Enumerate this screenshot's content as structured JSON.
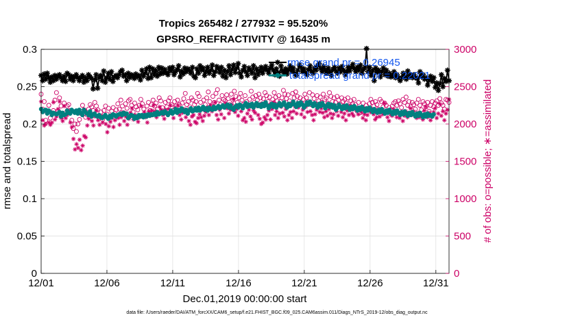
{
  "chart_data": {
    "type": "line",
    "title": "Tropics 265482 / 277932 = 95.520%",
    "subtitle": "GPSRO_REFRACTIVITY @ 16435 m",
    "xlabel": "Dec.01,2019 00:00:00 start",
    "ylabel": "rmse and totalspread",
    "ylabel_right": "# of obs: o=possible; ∗=assimilated",
    "xlim": [
      0,
      31
    ],
    "ylim": [
      0,
      0.3
    ],
    "ylim_right": [
      0,
      3000
    ],
    "x_ticks": [
      0,
      5,
      10,
      15,
      20,
      25,
      30
    ],
    "x_tick_labels": [
      "12/01",
      "12/06",
      "12/11",
      "12/16",
      "12/21",
      "12/26",
      "12/31"
    ],
    "y_tick_labels": [
      "0",
      "0.05",
      "0.1",
      "0.15",
      "0.2",
      "0.25",
      "0.3"
    ],
    "y_right_tick_labels": [
      "0",
      "500",
      "1000",
      "1500",
      "2000",
      "2500",
      "3000"
    ],
    "grid": true,
    "legend_position": "top-right",
    "colors": {
      "rmse": "#000000",
      "spread": "#008080",
      "obs": "#cc0066",
      "legend_text": "#1155ee"
    },
    "series": [
      {
        "name": "rmse grand pr = 0.26945",
        "axis": "left",
        "marker": "asterisk",
        "values": [
          0.265,
          0.258,
          0.267,
          0.26,
          0.268,
          0.262,
          0.256,
          0.263,
          0.258,
          0.265,
          0.26,
          0.264,
          0.266,
          0.262,
          0.258,
          0.264,
          0.257,
          0.268,
          0.266,
          0.26,
          0.264,
          0.258,
          0.263,
          0.266,
          0.262,
          0.258,
          0.262,
          0.265,
          0.256,
          0.262,
          0.258,
          0.266,
          0.263,
          0.261,
          0.247,
          0.259,
          0.266,
          0.248,
          0.262,
          0.265,
          0.258,
          0.271,
          0.256,
          0.262,
          0.268,
          0.26,
          0.27,
          0.257,
          0.263,
          0.265,
          0.262,
          0.266,
          0.27,
          0.272,
          0.264,
          0.266,
          0.258,
          0.268,
          0.262,
          0.266,
          0.265,
          0.261,
          0.267,
          0.263,
          0.265,
          0.259,
          0.272,
          0.264,
          0.268,
          0.274,
          0.261,
          0.276,
          0.262,
          0.274,
          0.266,
          0.272,
          0.264,
          0.276,
          0.267,
          0.275,
          0.268,
          0.273,
          0.269,
          0.266,
          0.275,
          0.271,
          0.276,
          0.266,
          0.27,
          0.273,
          0.278,
          0.263,
          0.271,
          0.267,
          0.275,
          0.27,
          0.274,
          0.272,
          0.268,
          0.276,
          0.264,
          0.262,
          0.274,
          0.268,
          0.278,
          0.272,
          0.275,
          0.265,
          0.271,
          0.276,
          0.268,
          0.272,
          0.279,
          0.265,
          0.27,
          0.277,
          0.274,
          0.269,
          0.276,
          0.264,
          0.272,
          0.262,
          0.27,
          0.278,
          0.266,
          0.273,
          0.279,
          0.269,
          0.275,
          0.281,
          0.268,
          0.263,
          0.272,
          0.277,
          0.27,
          0.265,
          0.275,
          0.272,
          0.268,
          0.278,
          0.262,
          0.274,
          0.266,
          0.271,
          0.276,
          0.268,
          0.273,
          0.277,
          0.272,
          0.268,
          0.275,
          0.279,
          0.272,
          0.266,
          0.274,
          0.269,
          0.264,
          0.278,
          0.271,
          0.268,
          0.274,
          0.267,
          0.273,
          0.278,
          0.271,
          0.275,
          0.268,
          0.265,
          0.272,
          0.279,
          0.276,
          0.27,
          0.274,
          0.269,
          0.266,
          0.273,
          0.278,
          0.271,
          0.268,
          0.275,
          0.272,
          0.278,
          0.281,
          0.274,
          0.27,
          0.277,
          0.272,
          0.268,
          0.275,
          0.27,
          0.265,
          0.273,
          0.276,
          0.271,
          0.268,
          0.275,
          0.27,
          0.277,
          0.272,
          0.266,
          0.27,
          0.276,
          0.271,
          0.276,
          0.28,
          0.274,
          0.27,
          0.276,
          0.272,
          0.279,
          0.268,
          0.273,
          0.276,
          0.301,
          0.27,
          0.276,
          0.265,
          0.272,
          0.258,
          0.275,
          0.269,
          0.272,
          0.263,
          0.27,
          0.275,
          0.266,
          0.272,
          0.264,
          0.268,
          0.263,
          0.265,
          0.27,
          0.262,
          0.266,
          0.262,
          0.258,
          0.262,
          0.268,
          0.264,
          0.26,
          0.271,
          0.263,
          0.266,
          0.262,
          0.266,
          0.262,
          0.261,
          0.255,
          0.27,
          0.263,
          0.266,
          0.26,
          0.262,
          0.252,
          0.259,
          0.264,
          0.257,
          0.262,
          0.249,
          0.255,
          0.245,
          0.254,
          0.266,
          0.25,
          0.261,
          0.257,
          0.272,
          0.258
        ]
      },
      {
        "name": "totalspread grand pr = 0.22021",
        "axis": "left",
        "marker": "filled-circle",
        "values": [
          0.22,
          0.216,
          0.218,
          0.219,
          0.214,
          0.218,
          0.216,
          0.212,
          0.215,
          0.214,
          0.213,
          0.214,
          0.216,
          0.21,
          0.215,
          0.212,
          0.213,
          0.218,
          0.215,
          0.214,
          0.219,
          0.217,
          0.215,
          0.218,
          0.214,
          0.219,
          0.215,
          0.212,
          0.219,
          0.216,
          0.214,
          0.212,
          0.217,
          0.21,
          0.213,
          0.214,
          0.211,
          0.21,
          0.212,
          0.209,
          0.208,
          0.21,
          0.212,
          0.209,
          0.207,
          0.211,
          0.209,
          0.213,
          0.212,
          0.21,
          0.212,
          0.213,
          0.214,
          0.212,
          0.215,
          0.213,
          0.214,
          0.208,
          0.21,
          0.212,
          0.211,
          0.207,
          0.21,
          0.208,
          0.212,
          0.21,
          0.212,
          0.209,
          0.212,
          0.21,
          0.213,
          0.211,
          0.213,
          0.212,
          0.214,
          0.212,
          0.216,
          0.213,
          0.214,
          0.216,
          0.214,
          0.217,
          0.215,
          0.212,
          0.215,
          0.218,
          0.214,
          0.216,
          0.22,
          0.215,
          0.219,
          0.217,
          0.221,
          0.218,
          0.216,
          0.219,
          0.214,
          0.218,
          0.221,
          0.217,
          0.218,
          0.221,
          0.218,
          0.222,
          0.218,
          0.22,
          0.223,
          0.219,
          0.221,
          0.218,
          0.222,
          0.22,
          0.219,
          0.223,
          0.22,
          0.222,
          0.224,
          0.221,
          0.223,
          0.225,
          0.222,
          0.224,
          0.226,
          0.222,
          0.225,
          0.221,
          0.219,
          0.223,
          0.225,
          0.222,
          0.226,
          0.224,
          0.221,
          0.225,
          0.228,
          0.223,
          0.226,
          0.224,
          0.227,
          0.222,
          0.225,
          0.228,
          0.224,
          0.226,
          0.223,
          0.227,
          0.224,
          0.229,
          0.225,
          0.221,
          0.224,
          0.227,
          0.223,
          0.226,
          0.222,
          0.225,
          0.228,
          0.224,
          0.226,
          0.229,
          0.225,
          0.222,
          0.227,
          0.224,
          0.226,
          0.23,
          0.226,
          0.223,
          0.228,
          0.225,
          0.229,
          0.226,
          0.222,
          0.225,
          0.229,
          0.226,
          0.23,
          0.227,
          0.224,
          0.228,
          0.225,
          0.222,
          0.227,
          0.224,
          0.228,
          0.225,
          0.221,
          0.224,
          0.227,
          0.223,
          0.226,
          0.222,
          0.225,
          0.219,
          0.222,
          0.226,
          0.223,
          0.22,
          0.224,
          0.221,
          0.225,
          0.222,
          0.219,
          0.223,
          0.22,
          0.224,
          0.221,
          0.218,
          0.222,
          0.219,
          0.223,
          0.22,
          0.217,
          0.221,
          0.218,
          0.222,
          0.219,
          0.216,
          0.22,
          0.217,
          0.215,
          0.219,
          0.216,
          0.22,
          0.217,
          0.214,
          0.218,
          0.215,
          0.219,
          0.216,
          0.213,
          0.217,
          0.214,
          0.218,
          0.215,
          0.212,
          0.216,
          0.213,
          0.217,
          0.214,
          0.211,
          0.215,
          0.212,
          0.216,
          0.213,
          0.21,
          0.214,
          0.211,
          0.215,
          0.212,
          0.209,
          0.213,
          0.21,
          0.214,
          0.211,
          0.212,
          0.21,
          0.213
        ]
      },
      {
        "name": "possible",
        "axis": "right",
        "marker": "open-circle",
        "values": [
          2400,
          2200,
          2300,
          2050,
          2150,
          2250,
          2080,
          2150,
          2180,
          2320,
          2420,
          2180,
          2350,
          2240,
          2100,
          2280,
          2150,
          2240,
          2260,
          2180,
          2050,
          1940,
          2000,
          1900,
          2000,
          2060,
          2140,
          2250,
          2190,
          2090,
          2120,
          2200,
          2260,
          2230,
          2180,
          2290,
          2240,
          2190,
          2080,
          2160,
          2060,
          2180,
          2240,
          2130,
          2210,
          2090,
          2170,
          2220,
          2140,
          2190,
          2270,
          2200,
          2320,
          2240,
          2150,
          2270,
          2210,
          2310,
          2330,
          2250,
          2160,
          2280,
          2230,
          2190,
          2250,
          2330,
          2270,
          2200,
          2120,
          2240,
          2290,
          2180,
          2260,
          2320,
          2240,
          2280,
          2200,
          2350,
          2310,
          2220,
          2140,
          2290,
          2230,
          2310,
          2350,
          2260,
          2180,
          2300,
          2240,
          2320,
          2260,
          2180,
          2280,
          2340,
          2410,
          2260,
          2300,
          2230,
          2350,
          2320,
          2260,
          2300,
          2410,
          2370,
          2290,
          2200,
          2320,
          2260,
          2350,
          2430,
          2300,
          2240,
          2370,
          2290,
          2410,
          2460,
          2320,
          2260,
          2380,
          2330,
          2310,
          2390,
          2340,
          2260,
          2400,
          2320,
          2440,
          2370,
          2290,
          2350,
          2410,
          2320,
          2260,
          2380,
          2300,
          2250,
          2330,
          2440,
          2360,
          2290,
          2380,
          2320,
          2400,
          2350,
          2270,
          2340,
          2420,
          2380,
          2300,
          2360,
          2260,
          2330,
          2420,
          2360,
          2310,
          2380,
          2300,
          2350,
          2450,
          2400,
          2340,
          2390,
          2310,
          2270,
          2410,
          2350,
          2430,
          2370,
          2300,
          2350,
          2280,
          2330,
          2400,
          2350,
          2300,
          2420,
          2260,
          2390,
          2340,
          2270,
          2380,
          2310,
          2360,
          2290,
          2400,
          2330,
          2350,
          2280,
          2420,
          2370,
          2300,
          2350,
          2290,
          2370,
          2320,
          2260,
          2350,
          2300,
          2330,
          2280,
          2350,
          2230,
          2310,
          2270,
          2330,
          2260,
          2200,
          2290,
          2150,
          2220,
          2280,
          2200,
          2250,
          2190,
          2270,
          2330,
          2290,
          2240,
          2300,
          2260,
          2200,
          2330,
          2300,
          2230,
          2280,
          2250,
          2170,
          2220,
          2190,
          2240,
          2280,
          2300,
          2250,
          2310,
          2270,
          2220,
          2330,
          2290,
          2360,
          2250,
          2300,
          2230,
          2290,
          2260,
          2200,
          2280,
          2330,
          2250,
          2190,
          2300,
          2270,
          2230,
          2290,
          2170,
          2250,
          2300,
          2230,
          2280,
          2310,
          2250,
          2340,
          2280,
          2250,
          2200,
          2330,
          2320,
          2290
        ]
      },
      {
        "name": "assimilated",
        "axis": "right",
        "marker": "asterisk",
        "values": [
          2300,
          2050,
          1980,
          2000,
          2180,
          2020,
          1990,
          2020,
          2290,
          2060,
          2100,
          2200,
          2300,
          2080,
          2040,
          2240,
          2080,
          2120,
          2180,
          2020,
          1960,
          1800,
          1660,
          1730,
          1680,
          1790,
          1650,
          1710,
          1840,
          1820,
          1980,
          2070,
          2130,
          2040,
          1980,
          2100,
          2180,
          2050,
          1990,
          2110,
          2020,
          2090,
          2000,
          1890,
          1970,
          2030,
          2080,
          1960,
          2050,
          2100,
          2080,
          1990,
          2090,
          2160,
          2040,
          2100,
          1990,
          2070,
          2150,
          2210,
          2060,
          2120,
          2080,
          2030,
          2090,
          2240,
          2120,
          2160,
          2090,
          2020,
          2170,
          2110,
          2180,
          2250,
          2170,
          2090,
          2140,
          2230,
          2190,
          2120,
          2070,
          2190,
          2140,
          2200,
          2250,
          2140,
          2080,
          2220,
          2170,
          2250,
          2120,
          2060,
          2150,
          2200,
          2090,
          2140,
          2040,
          1990,
          2100,
          2120,
          2030,
          2010,
          2080,
          2130,
          2090,
          2040,
          2110,
          2160,
          2220,
          2120,
          2250,
          2170,
          2230,
          2290,
          2120,
          2060,
          2190,
          2130,
          2240,
          2080,
          2280,
          2210,
          2140,
          2190,
          2260,
          2330,
          2160,
          2200,
          2110,
          2240,
          2170,
          2050,
          2080,
          2030,
          2140,
          2190,
          2100,
          2060,
          2180,
          2150,
          2240,
          2120,
          2070,
          2000,
          2020,
          2090,
          2060,
          2120,
          2180,
          2060,
          2200,
          2290,
          2120,
          2170,
          2080,
          2140,
          2230,
          2150,
          2100,
          2200,
          2050,
          2120,
          2160,
          2080,
          2170,
          2230,
          2140,
          2220,
          2260,
          2130,
          2190,
          2090,
          2230,
          2160,
          2280,
          2170,
          2120,
          2050,
          2130,
          2190,
          2240,
          2160,
          2210,
          2150,
          2090,
          2170,
          2110,
          2200,
          2140,
          2080,
          2130,
          2220,
          2170,
          2110,
          2230,
          2160,
          2090,
          2140,
          2050,
          2180,
          2120,
          2250,
          2140,
          2110,
          2200,
          2170,
          2130,
          2210,
          2160,
          2080,
          2130,
          2050,
          2120,
          2190,
          2160,
          2200,
          2130,
          2060,
          2090,
          2150,
          2100,
          2180,
          2130,
          2280,
          2160,
          2090,
          2040,
          2130,
          2110,
          2200,
          2160,
          2090,
          2140,
          2080,
          2130,
          2040,
          2110,
          2170,
          2090,
          2140,
          2210,
          2120,
          2170,
          2110,
          2080,
          2150,
          2090,
          2120,
          2060,
          2180,
          2230,
          2090,
          2150,
          2050,
          2110,
          2160,
          2210,
          2080,
          2140,
          2270,
          2110,
          2170,
          2050,
          2140,
          2190,
          2330
        ]
      }
    ]
  },
  "footer": {
    "text": "data file: /Users/raeder/DAI/ATM_forcXX/CAM6_setup/f.e21.FHIST_BGC.f09_025.CAM6assim.011/Diags_NTrS_2019-12/obs_diag_output.nc"
  }
}
